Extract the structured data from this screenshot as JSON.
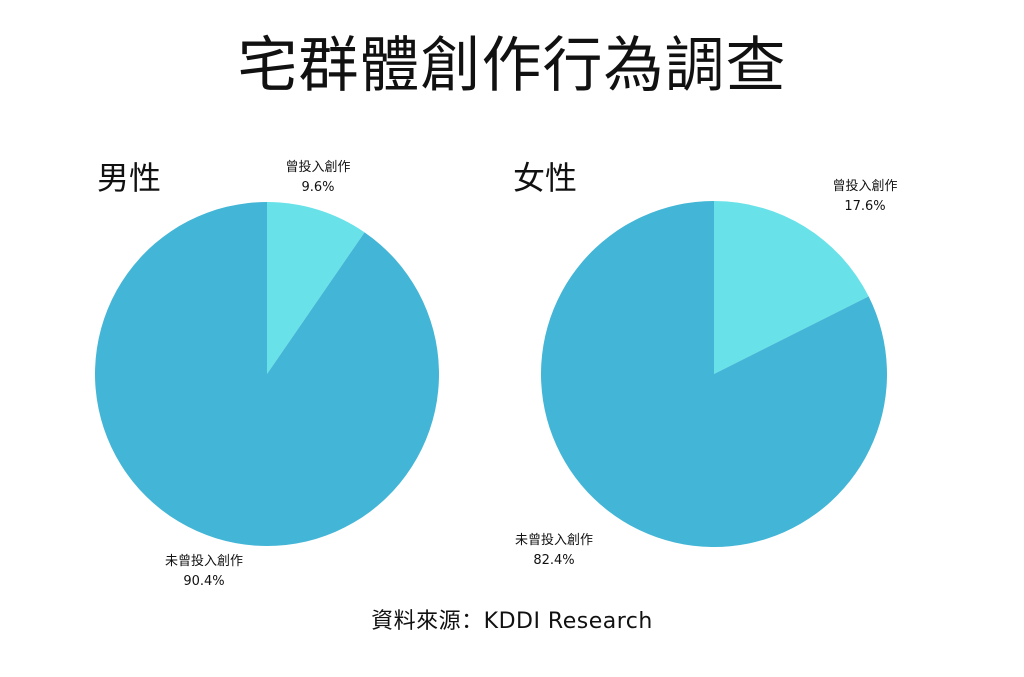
{
  "title": "宅群體創作行為調查",
  "source": "資料來源：KDDI Research",
  "colors": {
    "created": "#68e2e8",
    "not_created": "#43b5d6"
  },
  "chart_data": [
    {
      "type": "pie",
      "title": "男性",
      "slices": [
        {
          "label": "曾投入創作",
          "value": 9.6,
          "value_label": "9.6%",
          "color": "#68e2e8"
        },
        {
          "label": "未曾投入創作",
          "value": 90.4,
          "value_label": "90.4%",
          "color": "#43b5d6"
        }
      ]
    },
    {
      "type": "pie",
      "title": "女性",
      "slices": [
        {
          "label": "曾投入創作",
          "value": 17.6,
          "value_label": "17.6%",
          "color": "#68e2e8"
        },
        {
          "label": "未曾投入創作",
          "value": 82.4,
          "value_label": "82.4%",
          "color": "#43b5d6"
        }
      ]
    }
  ]
}
